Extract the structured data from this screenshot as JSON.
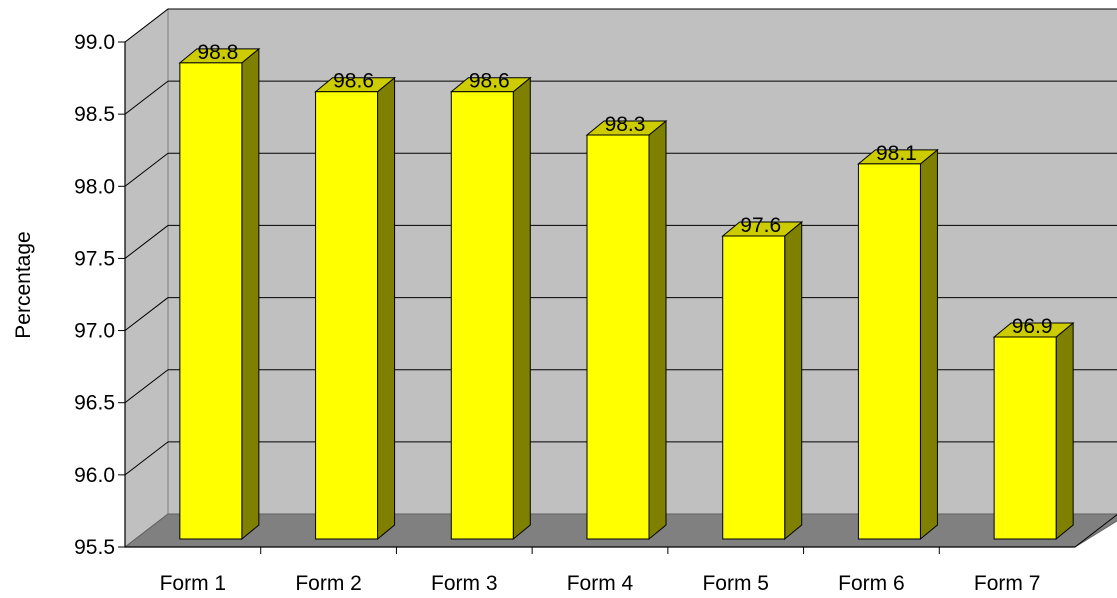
{
  "chart_data": {
    "type": "bar",
    "categories": [
      "Form 1",
      "Form 2",
      "Form 3",
      "Form 4",
      "Form 5",
      "Form 6",
      "Form 7"
    ],
    "values": [
      98.8,
      98.6,
      98.6,
      98.3,
      97.6,
      98.1,
      96.9
    ],
    "data_labels": [
      "98.8",
      "98.6",
      "98.6",
      "98.3",
      "97.6",
      "98.1",
      "96.9"
    ],
    "title": "",
    "xlabel": "",
    "ylabel": "Percentage",
    "ylim": [
      95.5,
      99.0
    ],
    "yticks": [
      "95.5",
      "96.0",
      "96.5",
      "97.0",
      "97.5",
      "98.0",
      "98.5",
      "99.0"
    ],
    "grid": true,
    "legend": "none",
    "colors": {
      "bar_front": "#ffff00",
      "bar_side": "#808000",
      "bar_top": "#cccc00",
      "back_wall": "#c0c0c0",
      "side_wall": "#c0c0c0",
      "floor": "#808080"
    }
  }
}
